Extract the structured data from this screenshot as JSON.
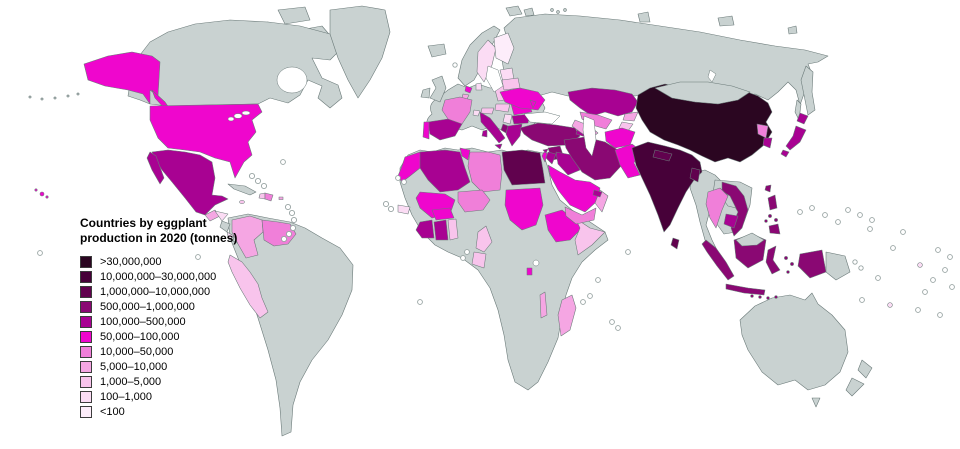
{
  "map_title": "Countries by eggplant\nproduction in 2020 (tonnes)",
  "legend": [
    {
      "label": ">30,000,000",
      "color": "#2b0621"
    },
    {
      "label": "10,000,000–30,000,000",
      "color": "#470139"
    },
    {
      "label": "1,000,000–10,000,000",
      "color": "#61024e"
    },
    {
      "label": "500,000–1,000,000",
      "color": "#8a0873"
    },
    {
      "label": "100,000–500,000",
      "color": "#a80292"
    },
    {
      "label": "50,000–100,000",
      "color": "#ef06cd"
    },
    {
      "label": "10,000–50,000",
      "color": "#f07fd9"
    },
    {
      "label": "5,000–10,000",
      "color": "#f5a6e3"
    },
    {
      "label": "1,000–5,000",
      "color": "#f8c4ec"
    },
    {
      "label": "100–1,000",
      "color": "#fbdcf4"
    },
    {
      "label": "<100",
      "color": "#fdedfa"
    }
  ],
  "map": {
    "ocean_color": "#ffffff",
    "no_data_color": "#c9d2d1",
    "border_color": "#6b7a79",
    "countries": {
      "china": 0,
      "india": 1,
      "egypt": 2,
      "nepal": 2,
      "bangladesh": 2,
      "sri-lanka": 2,
      "turkey": 3,
      "syria": 3,
      "iran": 3,
      "indonesia": 3,
      "philippines": 3,
      "vietnam": 3,
      "taiwan": 3,
      "albania": 3,
      "mexico": 4,
      "spain": 4,
      "italy": 4,
      "greece": 4,
      "bulgaria": 4,
      "iraq": 4,
      "jordan": 4,
      "azerbaijan": 4,
      "kazakhstan": 4,
      "japan": 4,
      "south-korea": 4,
      "cambodia": 4,
      "algeria": 4,
      "cote-divoire": 4,
      "ghana": 4,
      "uae": 4,
      "cyprus": 4,
      "usa": 5,
      "netherlands": 5,
      "portugal": 5,
      "romania": 5,
      "moldova": 5,
      "ukraine": 5,
      "morocco": 5,
      "tunisia": 5,
      "sudan": 5,
      "ethiopia": 5,
      "burkina-faso": 5,
      "rwanda-burundi": 5,
      "saudi-arabia": 5,
      "afghanistan": 5,
      "pakistan": 5,
      "mali": 5,
      "israel": 5,
      "hawaii": 5,
      "france": 6,
      "venezuela": 6,
      "libya": 6,
      "niger": 6,
      "yemen": 6,
      "uzbekistan": 6,
      "thailand": 6,
      "north-korea": 6,
      "dominican-republic": 6,
      "colombia": 7,
      "oman": 7,
      "turkmenistan": 7,
      "kyrgyzstan": 7,
      "malawi": 7,
      "madagascar": 7,
      "guatemala": 7,
      "belgium": 7,
      "puerto-rico": 7,
      "peru": 8,
      "poland": 8,
      "belarus": 8,
      "cameroon": 8,
      "gabon": 8,
      "somalia": 8,
      "tajikistan": 8,
      "togo-benin": 8,
      "haiti": 8,
      "jamaica": 8,
      "austria": 8,
      "hungary": 8,
      "sweden": 9,
      "denmark": 9,
      "senegal": 9,
      "serbia": 9,
      "switzerland": 9,
      "costa-rica": 9,
      "honduras": 9,
      "baltics": 9,
      "fiji": 9,
      "finland": 10
    }
  }
}
